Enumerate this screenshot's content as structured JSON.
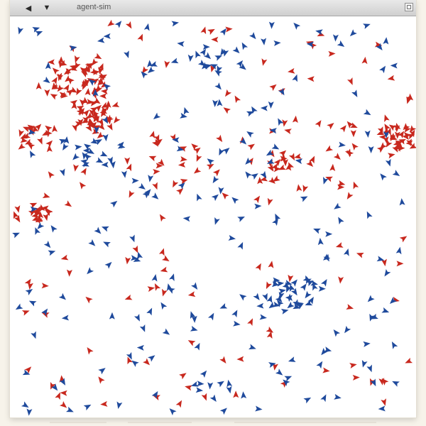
{
  "window": {
    "title": "agent-sim",
    "nav_back_icon": "back-arrow-icon",
    "nav_forward_icon": "forward-arrow-icon",
    "close_icon": "close-box-icon"
  },
  "simulation": {
    "background": "#ffffff",
    "groups": [
      {
        "name": "red",
        "color": "#c8281e"
      },
      {
        "name": "blue",
        "color": "#1f4a9c"
      }
    ]
  }
}
